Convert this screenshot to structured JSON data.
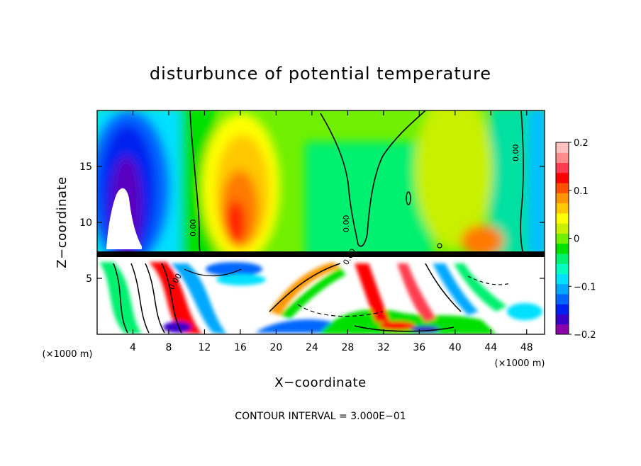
{
  "chart_data": {
    "type": "heatmap",
    "title": "disturbunce of potential temperature",
    "xlabel": "X−coordinate",
    "ylabel": "Z−coordinate",
    "x_unit": "(×1000 m)",
    "x_ticks": [
      4,
      8,
      12,
      16,
      20,
      24,
      28,
      32,
      36,
      40,
      44,
      48
    ],
    "y_ticks": [
      5,
      10,
      15
    ],
    "xlim": [
      0,
      50
    ],
    "ylim": [
      0,
      20
    ],
    "colorbar": {
      "min": -0.2,
      "max": 0.2,
      "tick_values": [
        0.2,
        0.1,
        0,
        -0.1,
        -0.2
      ],
      "tick_labels": [
        "0.2",
        "0.1",
        "0",
        "−0.1",
        "−0.2"
      ],
      "colors": [
        "#8b00a8",
        "#3a00c8",
        "#0020f0",
        "#0066ff",
        "#00a8ff",
        "#00e0ff",
        "#00ffc0",
        "#00f070",
        "#00e000",
        "#70f000",
        "#c8f000",
        "#ffff00",
        "#ffc800",
        "#ff9600",
        "#ff5000",
        "#ff0000",
        "#ff3c50",
        "#ff8c8c",
        "#ffc0c0"
      ]
    },
    "contour_labels": [
      "0.00",
      "0.00",
      "0.00",
      "0.00",
      "0.00"
    ],
    "contour_interval_text": "CONTOUR INTERVAL = 3.000E−01"
  }
}
